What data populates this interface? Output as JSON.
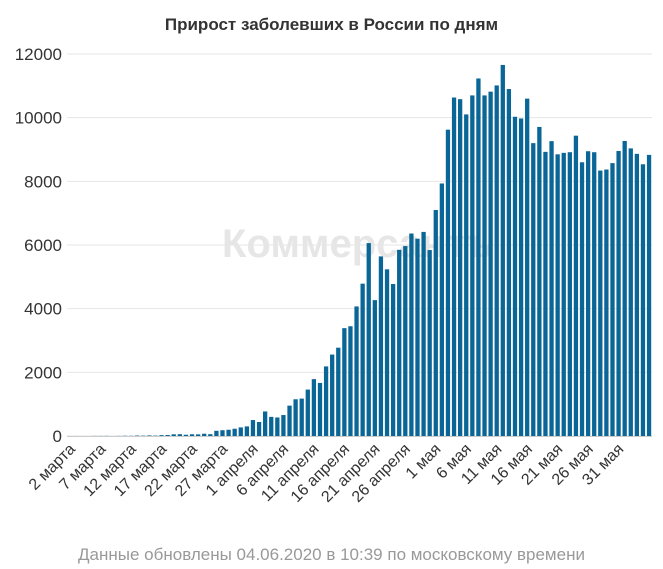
{
  "chart_data": {
    "type": "bar",
    "title": "Прирост заболевших в России по дням",
    "color": "#0a6697",
    "watermark": "Коммерсантъ",
    "ylim": [
      0,
      12000
    ],
    "y_ticks": [
      "0",
      "2000",
      "4000",
      "6000",
      "8000",
      "10000",
      "12000"
    ],
    "x_tick_labels": [
      "2 марта",
      "7 марта",
      "12 марта",
      "17 марта",
      "22 марта",
      "27 марта",
      "1 апреля",
      "6 апреля",
      "11 апреля",
      "16 апреля",
      "21 апреля",
      "26 апреля",
      "1 мая",
      "6 мая",
      "11 мая",
      "16 мая",
      "21 мая",
      "26 мая",
      "31 мая"
    ],
    "values": [
      1,
      1,
      0,
      0,
      3,
      3,
      4,
      0,
      3,
      7,
      6,
      14,
      11,
      18,
      12,
      27,
      31,
      53,
      57,
      40,
      54,
      52,
      71,
      57,
      163,
      182,
      196,
      228,
      270,
      302,
      501,
      440,
      771,
      601,
      582,
      658,
      954,
      1154,
      1175,
      1459,
      1786,
      1667,
      2186,
      2558,
      2774,
      3388,
      3448,
      4070,
      4785,
      6060,
      4268,
      5642,
      5236,
      4774,
      5849,
      5966,
      6361,
      6198,
      6411,
      5841,
      7099,
      7933,
      9623,
      10633,
      10581,
      10102,
      10699,
      11231,
      10699,
      10817,
      11012,
      11656,
      10899,
      10028,
      9974,
      10598,
      9200,
      9709,
      8926,
      9263,
      8849,
      8894,
      8915,
      9434,
      8599,
      8946,
      8915,
      8338,
      8371,
      8572,
      8952,
      9268,
      9035,
      8863,
      8536,
      8831
    ],
    "footnote": "Данные обновлены 04.06.2020 в 10:39 по московскому времени"
  }
}
